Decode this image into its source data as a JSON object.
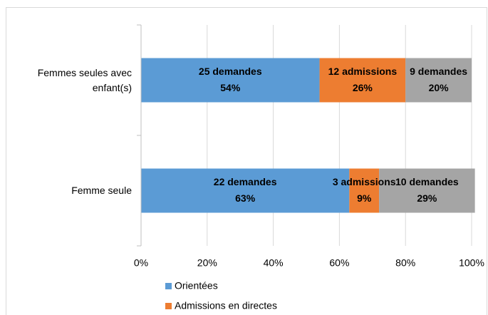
{
  "chart_data": {
    "type": "stacked-bar-horizontal",
    "categories": [
      "Femmes seules avec enfant(s)",
      "Femme seule"
    ],
    "series": [
      {
        "name": "Orientées",
        "color": "#5b9bd5",
        "values": [
          54,
          63
        ],
        "value_labels": [
          "54%",
          "63%"
        ],
        "count_labels": [
          "25 demandes",
          "22 demandes"
        ]
      },
      {
        "name": "Admissions en directes",
        "color": "#ed7d31",
        "values": [
          26,
          9
        ],
        "value_labels": [
          "26%",
          "9%"
        ],
        "count_labels": [
          "12 admissions",
          "3 admissions"
        ]
      },
      {
        "color": "#a5a5a5",
        "values": [
          20,
          29
        ],
        "value_labels": [
          "20%",
          "29%"
        ],
        "count_labels": [
          "9 demandes",
          "10 demandes"
        ]
      }
    ],
    "xlim": [
      0,
      100
    ],
    "xticks": [
      {
        "value": 0,
        "label": "0%"
      },
      {
        "value": 20,
        "label": "20%"
      },
      {
        "value": 40,
        "label": "40%"
      },
      {
        "value": 60,
        "label": "60%"
      },
      {
        "value": 80,
        "label": "80%"
      },
      {
        "value": 100,
        "label": "100%"
      }
    ],
    "grid": true
  }
}
